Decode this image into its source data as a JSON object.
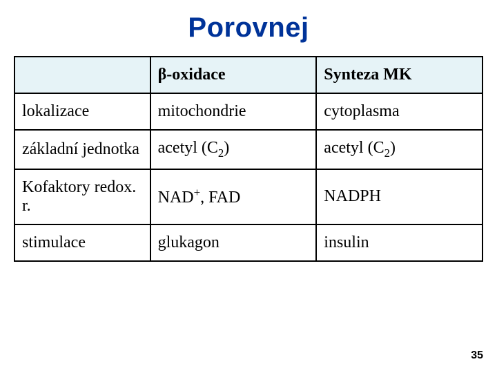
{
  "title": {
    "text": "Porovnej",
    "color": "#003399",
    "fontsize": 40
  },
  "page_number": "35",
  "pagenum_fontsize": 16,
  "table": {
    "header_bg": "#e6f3f7",
    "border_color": "#000000",
    "cell_fontsize": 24,
    "cell_padding_v": 12,
    "cell_padding_h": 10,
    "col_widths_pct": [
      29,
      35.5,
      35.5
    ],
    "columns": [
      {
        "kind": "plain",
        "text": ""
      },
      {
        "kind": "beta_oxidace",
        "beta": "β",
        "rest": "-oxidace"
      },
      {
        "kind": "plain",
        "text": "Synteza MK"
      }
    ],
    "rows": [
      {
        "label": "lokalizace",
        "col1": {
          "kind": "plain",
          "text": "mitochondrie"
        },
        "col2": {
          "kind": "plain",
          "text": "cytoplasma"
        }
      },
      {
        "label": "základní jednotka",
        "col1": {
          "kind": "acetyl_c2",
          "pre": "acetyl (C",
          "sub": "2",
          "post": ")"
        },
        "col2": {
          "kind": "acetyl_c2",
          "pre": "acetyl (C",
          "sub": "2",
          "post": ")"
        }
      },
      {
        "label": "Kofaktory redox. r.",
        "col1": {
          "kind": "nad_fad",
          "pre": "NAD",
          "sup": "+",
          "post": ", FAD"
        },
        "col2": {
          "kind": "plain",
          "text": "NADPH"
        }
      },
      {
        "label": "stimulace",
        "col1": {
          "kind": "plain",
          "text": "glukagon"
        },
        "col2": {
          "kind": "plain",
          "text": "insulin"
        }
      }
    ]
  }
}
